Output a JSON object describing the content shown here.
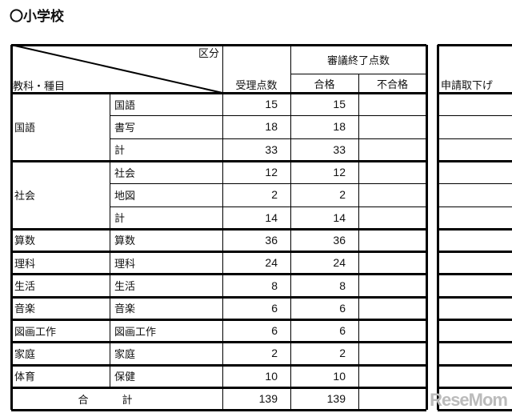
{
  "title": "〇小学校",
  "header": {
    "category": "区分",
    "subject": "教科・種目",
    "received": "受理点数",
    "reviewed": "審議終了点数",
    "passed": "合格",
    "failed": "不合格",
    "withdrawn": "申請取下げ"
  },
  "groups": [
    {
      "subject": "国語",
      "rows": [
        {
          "item": "国語",
          "received": "15",
          "passed": "15"
        },
        {
          "item": "書写",
          "received": "18",
          "passed": "18"
        },
        {
          "item": "計",
          "received": "33",
          "passed": "33"
        }
      ]
    },
    {
      "subject": "社会",
      "rows": [
        {
          "item": "社会",
          "received": "12",
          "passed": "12"
        },
        {
          "item": "地図",
          "received": "2",
          "passed": "2"
        },
        {
          "item": "計",
          "received": "14",
          "passed": "14"
        }
      ]
    },
    {
      "subject": "算数",
      "rows": [
        {
          "item": "算数",
          "received": "36",
          "passed": "36"
        }
      ]
    },
    {
      "subject": "理科",
      "rows": [
        {
          "item": "理科",
          "received": "24",
          "passed": "24"
        }
      ]
    },
    {
      "subject": "生活",
      "rows": [
        {
          "item": "生活",
          "received": "8",
          "passed": "8"
        }
      ]
    },
    {
      "subject": "音楽",
      "rows": [
        {
          "item": "音楽",
          "received": "6",
          "passed": "6"
        }
      ]
    },
    {
      "subject": "図画工作",
      "rows": [
        {
          "item": "図画工作",
          "received": "6",
          "passed": "6"
        }
      ]
    },
    {
      "subject": "家庭",
      "rows": [
        {
          "item": "家庭",
          "received": "2",
          "passed": "2"
        }
      ]
    },
    {
      "subject": "体育",
      "rows": [
        {
          "item": "保健",
          "received": "10",
          "passed": "10"
        }
      ]
    }
  ],
  "total": {
    "label_1": "合",
    "label_2": "計",
    "received": "139",
    "passed": "139"
  },
  "watermark": "ReseMom"
}
